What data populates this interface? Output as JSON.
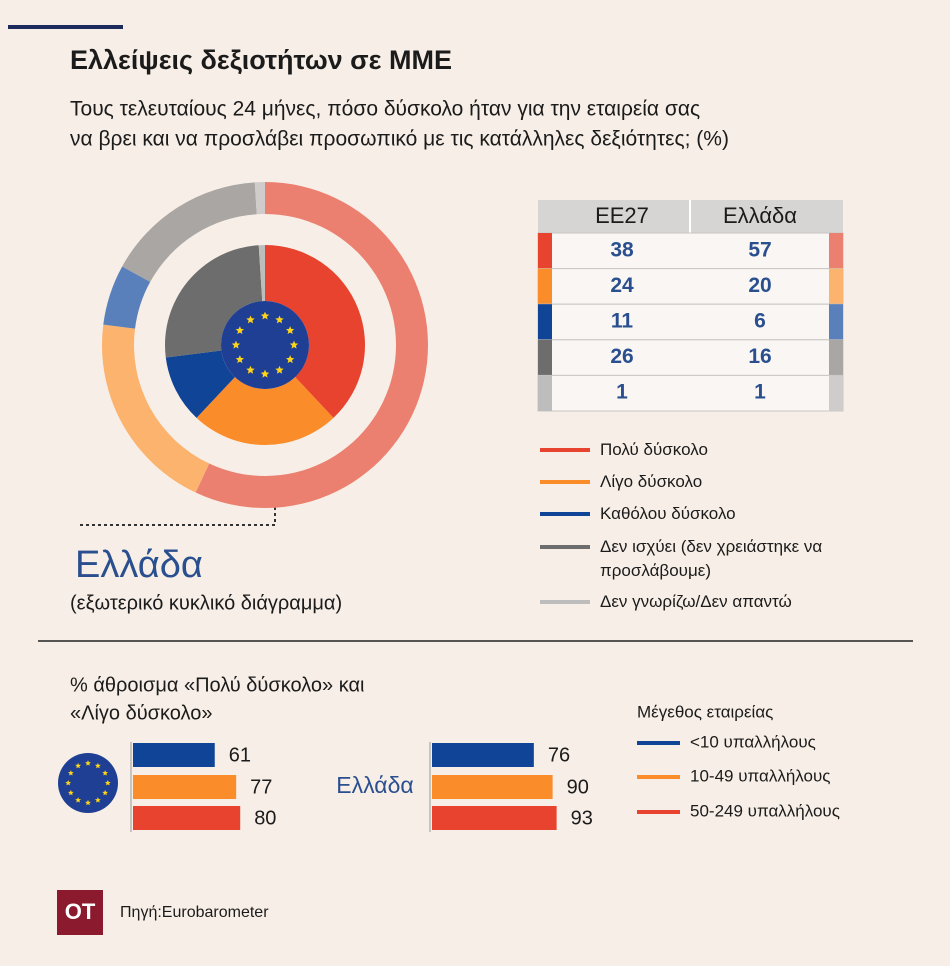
{
  "header": {
    "title": "Ελλείψεις δεξιοτήτων σε ΜΜΕ",
    "subtitle": [
      "Τους τελευταίους 24 μήνες, πόσο δύσκολο ήταν για την εταιρεία σας",
      "να βρει και να προσλάβει  προσωπικό με τις κατάλληλες δεξιότητες; (%)"
    ]
  },
  "chart_data": [
    {
      "type": "donut",
      "categories": [
        "Πολύ δύσκολο",
        "Λίγο δύσκολο",
        "Καθόλου δύσκολο",
        "Δεν ισχύει (δεν χρειάστηκε να προσλάβουμε)",
        "Δεν γνωρίζω/Δεν απαντώ"
      ],
      "series": [
        {
          "name": "ΕΕ27",
          "values": [
            38,
            24,
            11,
            26,
            1
          ],
          "colors": [
            "#e8432e",
            "#fb8c2a",
            "#0f4497",
            "#6d6d6d",
            "#bdbdbd"
          ]
        },
        {
          "name": "Ελλάδα",
          "values": [
            57,
            20,
            6,
            16,
            1
          ],
          "colors": [
            "#ec8070",
            "#fbb36e",
            "#5a80bb",
            "#a9a6a3",
            "#cfcccb"
          ]
        }
      ],
      "outer_label": "Ελλάδα",
      "outer_note": "(εξωτερικό κυκλικό διάγραμμα)"
    },
    {
      "type": "bar",
      "title": [
        "% άθροισμα «Πολύ δύσκολο» και",
        "«Λίγο δύσκολο»"
      ],
      "legend_title": "Μέγεθος εταιρείας",
      "categories": [
        "<10 υπαλλήλους",
        "10-49 υπαλλήλους",
        "50-249 υπαλλήλους"
      ],
      "colors": [
        "#0f4497",
        "#fb8c2a",
        "#e8432e"
      ],
      "series": [
        {
          "name": null,
          "values": [
            61,
            77,
            80
          ]
        },
        {
          "name": "Ελλάδα",
          "values": [
            76,
            90,
            93
          ]
        }
      ]
    }
  ],
  "footer": {
    "logo": "ΟΤ",
    "source": "Πηγή:Eurobarometer"
  }
}
